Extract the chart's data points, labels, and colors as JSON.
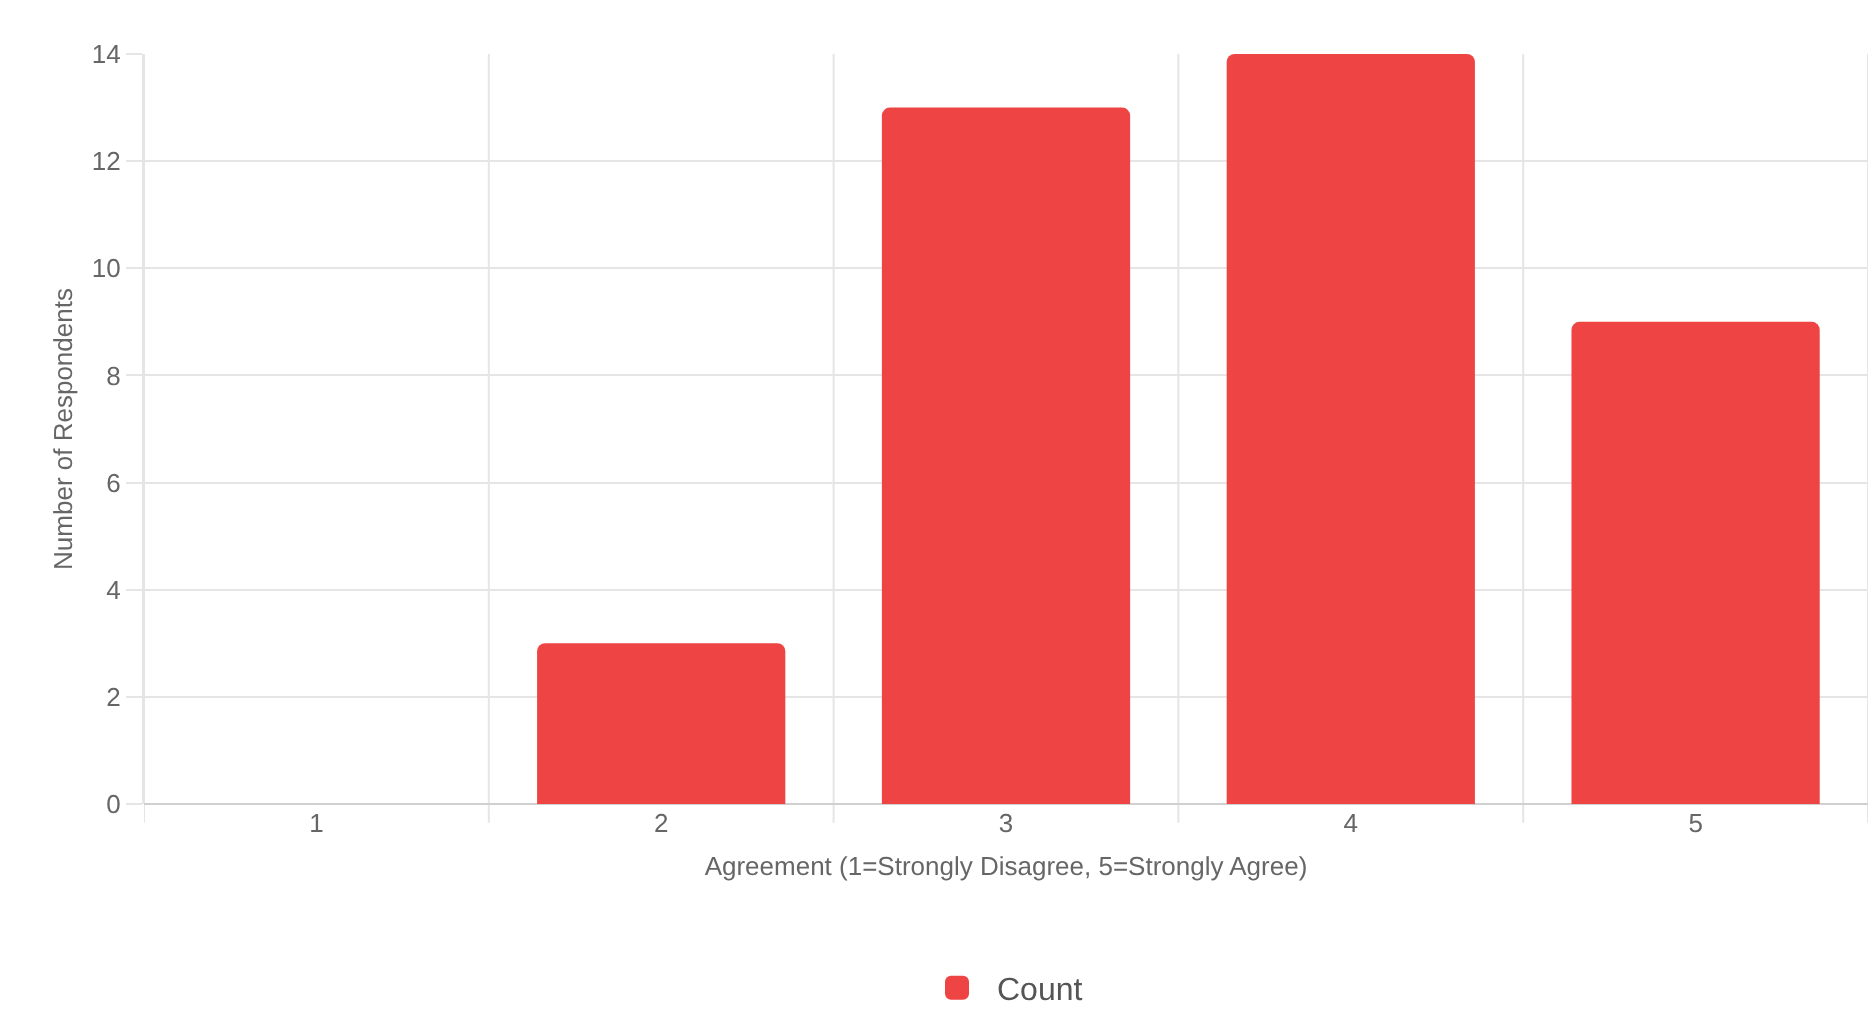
{
  "chart_data": {
    "type": "bar",
    "xlabel": "Agreement (1=Strongly Disagree, 5=Strongly Agree)",
    "ylabel": "Number of Respondents",
    "categories": [
      "1",
      "2",
      "3",
      "4",
      "5"
    ],
    "series": [
      {
        "name": "Count",
        "color": "#ef4444",
        "values": [
          0,
          3,
          13,
          14,
          9
        ]
      }
    ],
    "ylim": [
      0,
      14
    ],
    "yticks": [
      0,
      2,
      4,
      6,
      8,
      10,
      12,
      14
    ],
    "grid": true,
    "legend": "bottom"
  }
}
